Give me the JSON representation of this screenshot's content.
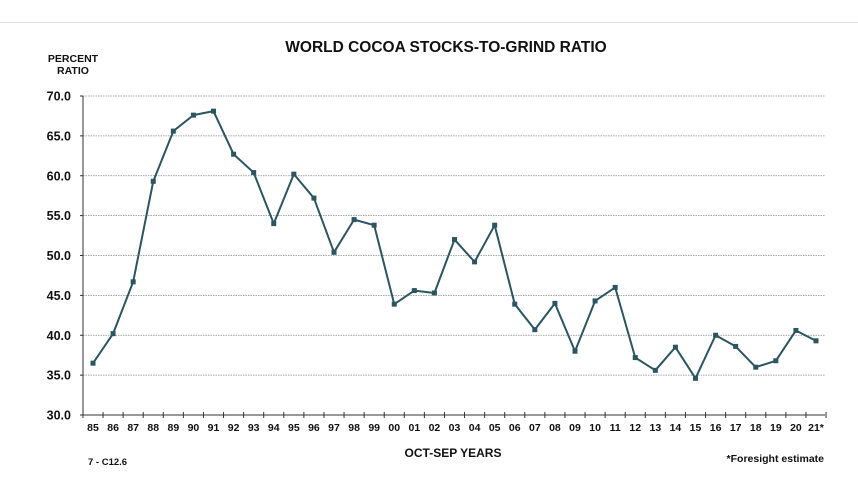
{
  "chart_data": {
    "type": "line",
    "title": "WORLD COCOA STOCKS-TO-GRIND RATIO",
    "ylabel": [
      "PERCENT",
      "RATIO"
    ],
    "xlabel": "OCT-SEP YEARS",
    "footnote_left": "7 - C12.6",
    "footnote_right": "*Foresight estimate",
    "ylim": [
      30,
      70
    ],
    "yticks": [
      "30.0",
      "35.0",
      "40.0",
      "45.0",
      "50.0",
      "55.0",
      "60.0",
      "65.0",
      "70.0"
    ],
    "grid": true,
    "line_color": "#2b5560",
    "categories": [
      "85",
      "86",
      "87",
      "88",
      "89",
      "90",
      "91",
      "92",
      "93",
      "94",
      "95",
      "96",
      "97",
      "98",
      "99",
      "00",
      "01",
      "02",
      "03",
      "04",
      "05",
      "06",
      "07",
      "08",
      "09",
      "10",
      "11",
      "12",
      "13",
      "14",
      "15",
      "16",
      "17",
      "18",
      "19",
      "20",
      "21*"
    ],
    "values": [
      36.5,
      40.2,
      46.7,
      59.3,
      65.6,
      67.6,
      68.1,
      62.7,
      60.4,
      54.0,
      60.2,
      57.2,
      50.4,
      54.5,
      53.8,
      43.9,
      45.6,
      45.3,
      52.0,
      49.2,
      53.8,
      43.9,
      40.7,
      44.0,
      38.0,
      44.3,
      46.0,
      37.2,
      35.6,
      38.5,
      34.6,
      40.0,
      38.6,
      36.0,
      36.8,
      40.6,
      39.3
    ]
  }
}
